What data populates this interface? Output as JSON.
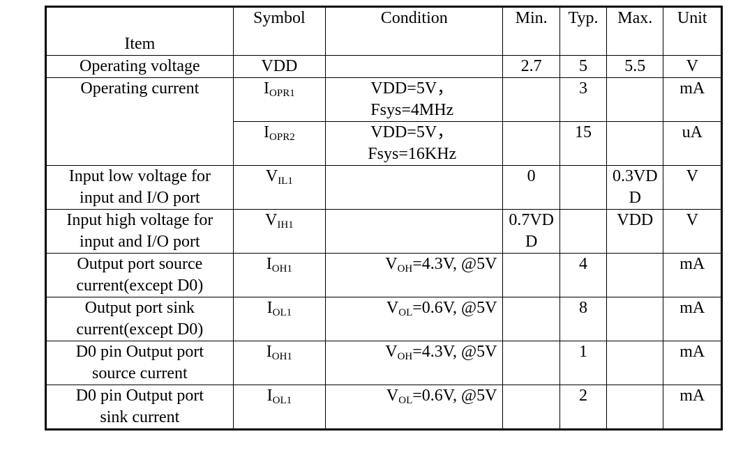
{
  "headers": {
    "item": "Item",
    "symbol": "Symbol",
    "condition": "Condition",
    "min": "Min.",
    "typ": "Typ.",
    "max": "Max.",
    "unit": "Unit"
  },
  "rows": {
    "r1": {
      "item": "Operating voltage",
      "symbol": "VDD",
      "min": "2.7",
      "typ": "5",
      "max": "5.5",
      "unit": "V"
    },
    "r2": {
      "item": "Operating current",
      "sym_main": "I",
      "sym_sub": "OPR1",
      "cond_l1": "VDD=5V，",
      "cond_l2": "Fsys=4MHz",
      "typ": "3",
      "unit": "mA"
    },
    "r3": {
      "sym_main": "I",
      "sym_sub": "OPR2",
      "cond_l1": "VDD=5V，",
      "cond_l2": "Fsys=16KHz",
      "typ": "15",
      "unit": "uA"
    },
    "r4": {
      "item_l1": "Input low voltage for",
      "item_l2": "input and I/O port",
      "sym_main": "V",
      "sym_sub": "IL1",
      "min": "0",
      "max_l1": "0.3VD",
      "max_l2": "D",
      "unit": "V"
    },
    "r5": {
      "item_l1": "Input high voltage for",
      "item_l2": "input and I/O port",
      "sym_main": "V",
      "sym_sub": "IH1",
      "min_l1": "0.7VD",
      "min_l2": "D",
      "max": "VDD",
      "unit": "V"
    },
    "r6": {
      "item_l1": "Output port source",
      "item_l2": "current(except D0)",
      "sym_main": "I",
      "sym_sub": "OH1",
      "cond_main": "V",
      "cond_sub": "OH",
      "cond_rest": "=4.3V, @5V",
      "typ": "4",
      "unit": "mA"
    },
    "r7": {
      "item_l1": "Output port sink",
      "item_l2": "current(except D0)",
      "sym_main": "I",
      "sym_sub": "OL1",
      "cond_main": "V",
      "cond_sub": "OL",
      "cond_rest": "=0.6V, @5V",
      "typ": "8",
      "unit": "mA"
    },
    "r8": {
      "item_l1": "D0 pin Output port",
      "item_l2": "source current",
      "sym_main": "I",
      "sym_sub": "OH1",
      "cond_main": "V",
      "cond_sub": "OH",
      "cond_rest": "=4.3V, @5V",
      "typ": "1",
      "unit": "mA"
    },
    "r9": {
      "item_l1": "D0 pin Output port",
      "item_l2": "sink current",
      "sym_main": "I",
      "sym_sub": "OL1",
      "cond_main": "V",
      "cond_sub": "OL",
      "cond_rest": "=0.6V, @5V",
      "typ": "2",
      "unit": "mA"
    }
  }
}
